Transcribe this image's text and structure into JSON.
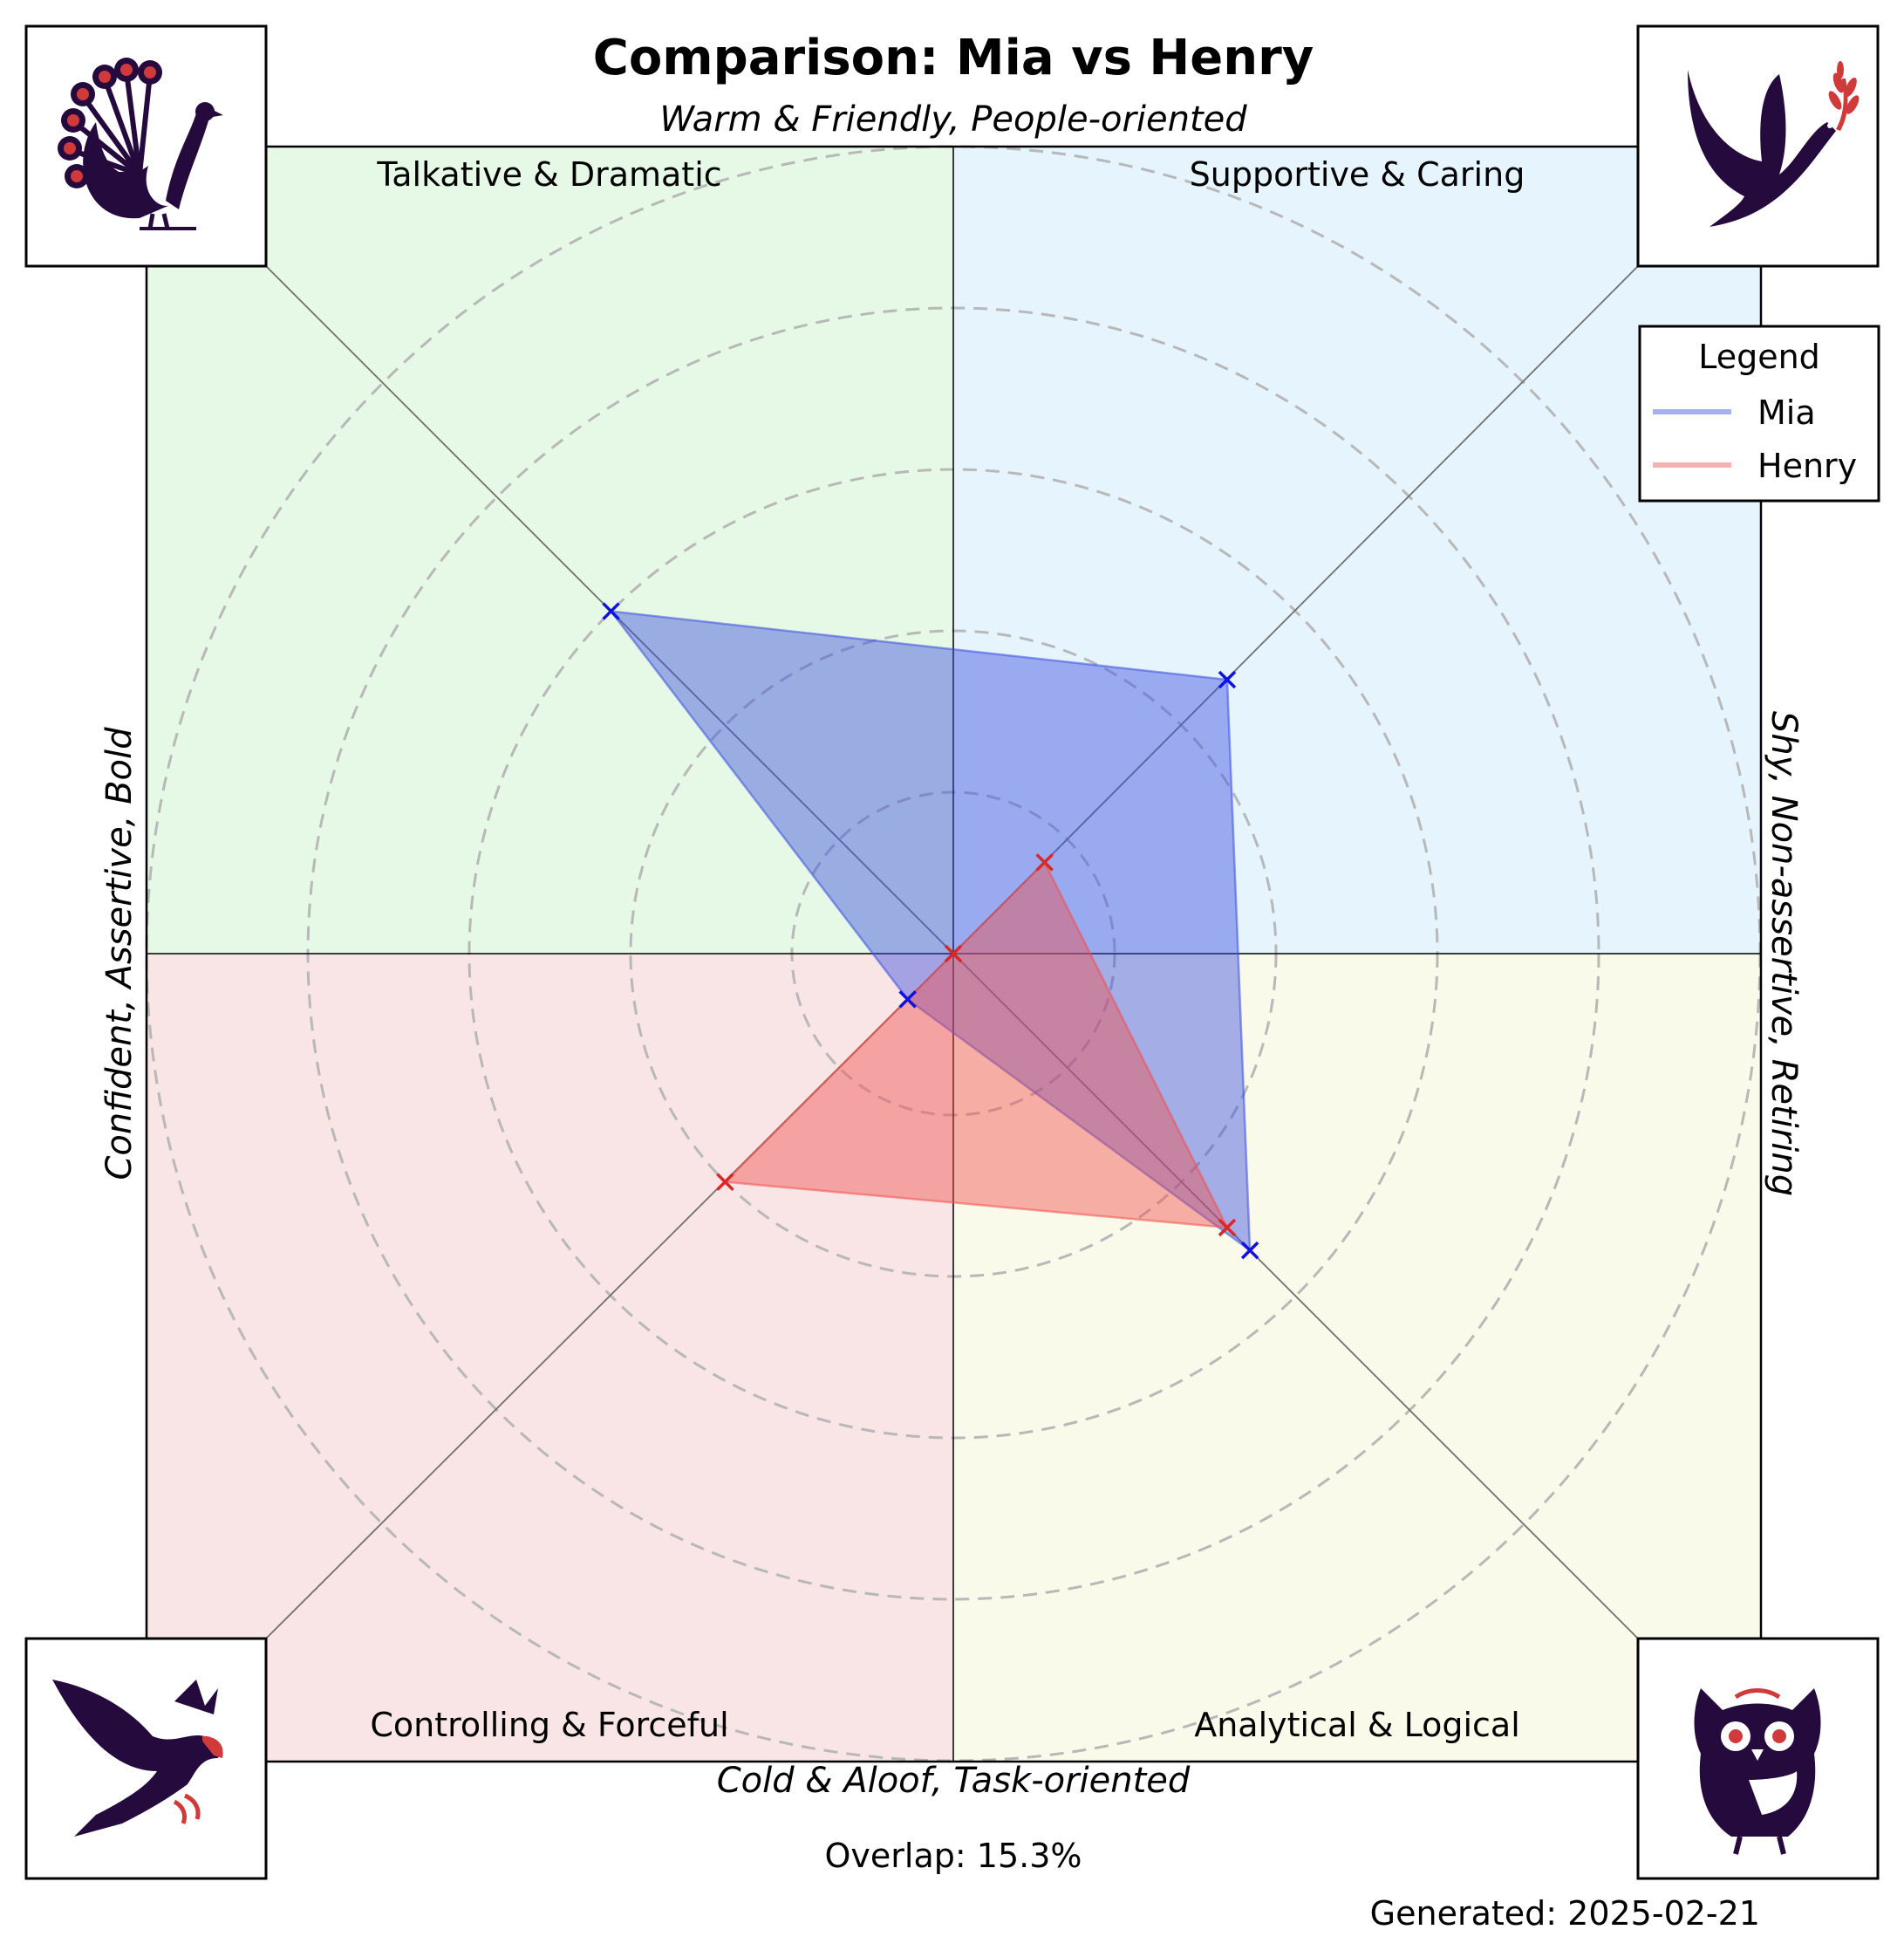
{
  "chart_data": {
    "type": "radar",
    "title": "Comparison: Mia vs Henry",
    "axes": {
      "top": "Warm & Friendly, People-oriented",
      "bottom": "Cold & Aloof, Task-oriented",
      "left": "Confident, Assertive, Bold",
      "right": "Shy, Non-assertive, Retiring"
    },
    "quadrants": [
      {
        "label": "Talkative & Dramatic",
        "color": "#e6f9e6",
        "icon": "peacock-icon"
      },
      {
        "label": "Supportive & Caring",
        "color": "#e5f4fd",
        "icon": "dove-icon"
      },
      {
        "label": "Controlling & Forceful",
        "color": "#f9e5e5",
        "icon": "eagle-icon"
      },
      {
        "label": "Analytical & Logical",
        "color": "#fafaea",
        "icon": "owl-icon"
      }
    ],
    "directions": [
      "Talkative & Dramatic",
      "Supportive & Caring",
      "Analytical & Logical",
      "Controlling & Forceful"
    ],
    "radial_range": [
      0,
      5
    ],
    "rings": [
      1,
      2,
      3,
      4,
      5
    ],
    "series": [
      {
        "name": "Mia",
        "color": "#3b4fe0",
        "values": [
          3.0,
          2.4,
          2.6,
          0.4
        ]
      },
      {
        "name": "Henry",
        "color": "#f05050",
        "values": [
          0.0,
          0.8,
          2.4,
          2.0
        ]
      }
    ],
    "legend": {
      "title": "Legend",
      "position": "top-right"
    },
    "grid": true
  },
  "overlap_text": "Overlap: 15.3%",
  "generated_text": "Generated: 2025-02-21"
}
